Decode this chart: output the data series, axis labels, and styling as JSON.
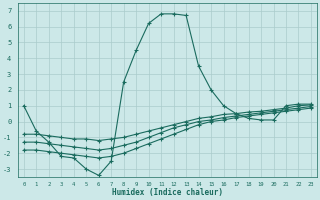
{
  "xlabel": "Humidex (Indice chaleur)",
  "ylabel": "",
  "xlim": [
    -0.5,
    23.5
  ],
  "ylim": [
    -3.5,
    7.5
  ],
  "xticks": [
    0,
    1,
    2,
    3,
    4,
    5,
    6,
    7,
    8,
    9,
    10,
    11,
    12,
    13,
    14,
    15,
    16,
    17,
    18,
    19,
    20,
    21,
    22,
    23
  ],
  "yticks": [
    -3,
    -2,
    -1,
    0,
    1,
    2,
    3,
    4,
    5,
    6,
    7
  ],
  "bg_color": "#cce8e8",
  "grid_color": "#aacccc",
  "line_color": "#1a6b5e",
  "series1_x": [
    0,
    1,
    2,
    3,
    4,
    5,
    6,
    7,
    8,
    9,
    10,
    11,
    12,
    13,
    14,
    15,
    16,
    17,
    18,
    19,
    20,
    21,
    22,
    23
  ],
  "series1_y": [
    1.0,
    -0.6,
    -1.3,
    -2.2,
    -2.3,
    -3.0,
    -3.4,
    -2.5,
    2.5,
    4.5,
    6.2,
    6.8,
    6.8,
    6.7,
    3.5,
    2.0,
    1.0,
    0.5,
    0.2,
    0.1,
    0.1,
    1.0,
    1.1,
    1.1
  ],
  "series2_x": [
    0,
    1,
    2,
    3,
    4,
    5,
    6,
    7,
    8,
    9,
    10,
    11,
    12,
    13,
    14,
    15,
    16,
    17,
    18,
    19,
    20,
    21,
    22,
    23
  ],
  "series2_y": [
    -0.8,
    -0.8,
    -0.9,
    -1.0,
    -1.1,
    -1.1,
    -1.2,
    -1.1,
    -1.0,
    -0.8,
    -0.6,
    -0.4,
    -0.2,
    0.0,
    0.2,
    0.3,
    0.45,
    0.5,
    0.6,
    0.65,
    0.75,
    0.85,
    1.0,
    1.05
  ],
  "series3_x": [
    0,
    1,
    2,
    3,
    4,
    5,
    6,
    7,
    8,
    9,
    10,
    11,
    12,
    13,
    14,
    15,
    16,
    17,
    18,
    19,
    20,
    21,
    22,
    23
  ],
  "series3_y": [
    -1.3,
    -1.3,
    -1.4,
    -1.5,
    -1.6,
    -1.7,
    -1.8,
    -1.7,
    -1.5,
    -1.3,
    -1.0,
    -0.7,
    -0.4,
    -0.2,
    0.0,
    0.1,
    0.25,
    0.35,
    0.45,
    0.55,
    0.65,
    0.75,
    0.85,
    0.95
  ],
  "series4_x": [
    0,
    1,
    2,
    3,
    4,
    5,
    6,
    7,
    8,
    9,
    10,
    11,
    12,
    13,
    14,
    15,
    16,
    17,
    18,
    19,
    20,
    21,
    22,
    23
  ],
  "series4_y": [
    -1.8,
    -1.8,
    -1.9,
    -2.0,
    -2.1,
    -2.2,
    -2.3,
    -2.2,
    -2.0,
    -1.7,
    -1.4,
    -1.1,
    -0.8,
    -0.5,
    -0.2,
    0.0,
    0.1,
    0.25,
    0.35,
    0.45,
    0.55,
    0.65,
    0.75,
    0.85
  ]
}
